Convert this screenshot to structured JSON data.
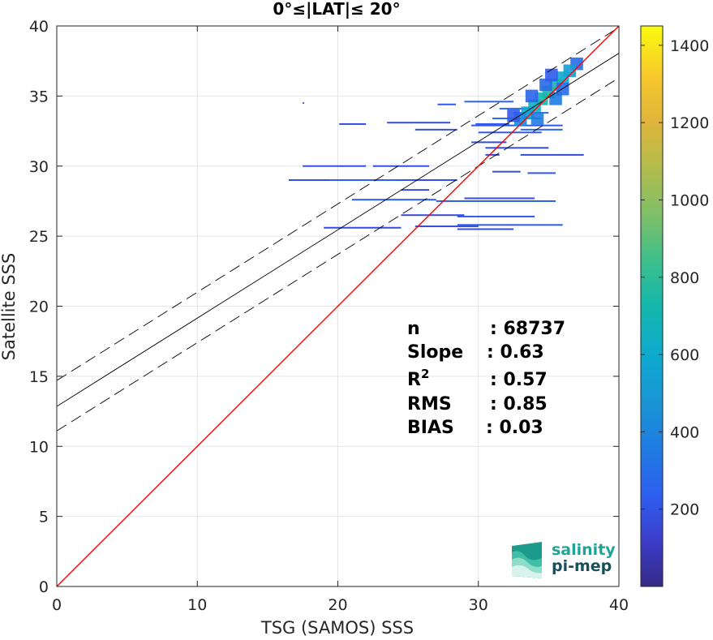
{
  "chart_data": {
    "type": "heatmap",
    "title": "0°≤|LAT|≤ 20°",
    "xlabel": "TSG (SAMOS) SSS",
    "ylabel": "Satellite SSS",
    "xlim": [
      0,
      40
    ],
    "ylim": [
      0,
      40
    ],
    "xticks": [
      "0",
      "10",
      "20",
      "30",
      "40"
    ],
    "yticks": [
      "0",
      "5",
      "10",
      "15",
      "20",
      "25",
      "30",
      "35",
      "40"
    ],
    "grid": true,
    "colorbar": {
      "range": [
        0,
        1450
      ],
      "ticks": [
        "200",
        "400",
        "600",
        "800",
        "1000",
        "1200",
        "1400"
      ],
      "tick_values": [
        200,
        400,
        600,
        800,
        1000,
        1200,
        1400
      ],
      "colormap": "parula"
    },
    "reference_line": {
      "name": "1:1",
      "color": "#ff0000",
      "slope": 1,
      "intercept": 0
    },
    "fit_line": {
      "color": "#000000",
      "slope": 0.63,
      "intercept": 12.85
    },
    "fit_bounds": [
      {
        "slope": 0.63,
        "intercept": 14.7,
        "style": "dashed"
      },
      {
        "slope": 0.63,
        "intercept": 11.1,
        "style": "dashed"
      }
    ],
    "stats": [
      {
        "label": "n",
        "value": ": 68737"
      },
      {
        "label": "Slope",
        "value": ": 0.63"
      },
      {
        "label": "R",
        "sup": "2",
        "value": ": 0.57"
      },
      {
        "label": "RMS",
        "value": ": 0.85"
      },
      {
        "label": "BIAS",
        "value": ": 0.03"
      }
    ],
    "density_segments": [
      {
        "x1": 17.5,
        "x2": 17.6,
        "y": 34.5,
        "level": 0.1
      },
      {
        "x1": 27.1,
        "x2": 28.4,
        "y": 34.4,
        "level": 0.15
      },
      {
        "x1": 29.0,
        "x2": 32.5,
        "y": 34.6,
        "level": 0.18
      },
      {
        "x1": 31.5,
        "x2": 33.8,
        "y": 34.1,
        "level": 0.2
      },
      {
        "x1": 32.5,
        "x2": 35.0,
        "y": 33.8,
        "level": 0.22
      },
      {
        "x1": 31.0,
        "x2": 34.5,
        "y": 33.4,
        "level": 0.2
      },
      {
        "x1": 29.8,
        "x2": 32.2,
        "y": 33.0,
        "level": 0.15
      },
      {
        "x1": 20.1,
        "x2": 22.0,
        "y": 33.0,
        "level": 0.12
      },
      {
        "x1": 23.5,
        "x2": 28.0,
        "y": 33.1,
        "level": 0.13
      },
      {
        "x1": 29.5,
        "x2": 36.0,
        "y": 32.9,
        "level": 0.15
      },
      {
        "x1": 25.5,
        "x2": 28.5,
        "y": 32.6,
        "level": 0.12
      },
      {
        "x1": 30.0,
        "x2": 34.5,
        "y": 32.4,
        "level": 0.15
      },
      {
        "x1": 33.0,
        "x2": 36.0,
        "y": 32.6,
        "level": 0.18
      },
      {
        "x1": 29.5,
        "x2": 32.0,
        "y": 31.7,
        "level": 0.12
      },
      {
        "x1": 30.5,
        "x2": 35.0,
        "y": 31.3,
        "level": 0.12
      },
      {
        "x1": 33.0,
        "x2": 37.5,
        "y": 30.8,
        "level": 0.12
      },
      {
        "x1": 30.5,
        "x2": 31.5,
        "y": 30.8,
        "level": 0.12
      },
      {
        "x1": 17.5,
        "x2": 22.0,
        "y": 30.0,
        "level": 0.12
      },
      {
        "x1": 22.5,
        "x2": 26.5,
        "y": 30.0,
        "level": 0.12
      },
      {
        "x1": 31.0,
        "x2": 33.0,
        "y": 29.6,
        "level": 0.12
      },
      {
        "x1": 33.5,
        "x2": 35.5,
        "y": 29.5,
        "level": 0.15
      },
      {
        "x1": 16.5,
        "x2": 19.5,
        "y": 29.0,
        "level": 0.13
      },
      {
        "x1": 19.5,
        "x2": 24.5,
        "y": 29.0,
        "level": 0.15
      },
      {
        "x1": 24.5,
        "x2": 28.5,
        "y": 29.0,
        "level": 0.12
      },
      {
        "x1": 24.5,
        "x2": 26.5,
        "y": 28.3,
        "level": 0.12
      },
      {
        "x1": 21.0,
        "x2": 27.0,
        "y": 27.6,
        "level": 0.15
      },
      {
        "x1": 27.0,
        "x2": 35.5,
        "y": 27.5,
        "level": 0.15
      },
      {
        "x1": 29.0,
        "x2": 34.0,
        "y": 27.7,
        "level": 0.12
      },
      {
        "x1": 24.5,
        "x2": 29.0,
        "y": 26.5,
        "level": 0.12
      },
      {
        "x1": 28.5,
        "x2": 34.0,
        "y": 26.4,
        "level": 0.15
      },
      {
        "x1": 19.0,
        "x2": 24.5,
        "y": 25.6,
        "level": 0.12
      },
      {
        "x1": 25.5,
        "x2": 30.0,
        "y": 25.7,
        "level": 0.12
      },
      {
        "x1": 28.5,
        "x2": 36.0,
        "y": 25.8,
        "level": 0.15
      },
      {
        "x1": 28.5,
        "x2": 32.5,
        "y": 25.5,
        "level": 0.12
      }
    ],
    "density_core": [
      {
        "x": 37.0,
        "y": 37.3,
        "level": 0.2
      },
      {
        "x": 36.5,
        "y": 36.8,
        "level": 0.35
      },
      {
        "x": 36.0,
        "y": 36.3,
        "level": 0.4
      },
      {
        "x": 35.5,
        "y": 35.8,
        "level": 0.5
      },
      {
        "x": 35.0,
        "y": 35.3,
        "level": 0.55
      },
      {
        "x": 34.5,
        "y": 34.8,
        "level": 0.5
      },
      {
        "x": 34.0,
        "y": 34.3,
        "level": 0.45
      },
      {
        "x": 33.5,
        "y": 33.8,
        "level": 0.4
      },
      {
        "x": 33.0,
        "y": 33.3,
        "level": 0.3
      },
      {
        "x": 34.8,
        "y": 35.8,
        "level": 0.2
      },
      {
        "x": 35.5,
        "y": 34.8,
        "level": 0.25
      },
      {
        "x": 33.8,
        "y": 35.0,
        "level": 0.18
      },
      {
        "x": 36.0,
        "y": 35.5,
        "level": 0.2
      },
      {
        "x": 34.2,
        "y": 33.4,
        "level": 0.25
      },
      {
        "x": 35.2,
        "y": 36.5,
        "level": 0.15
      },
      {
        "x": 32.5,
        "y": 33.6,
        "level": 0.15
      }
    ]
  },
  "logo": {
    "line1": "salinity",
    "line2": "pi-mep"
  }
}
